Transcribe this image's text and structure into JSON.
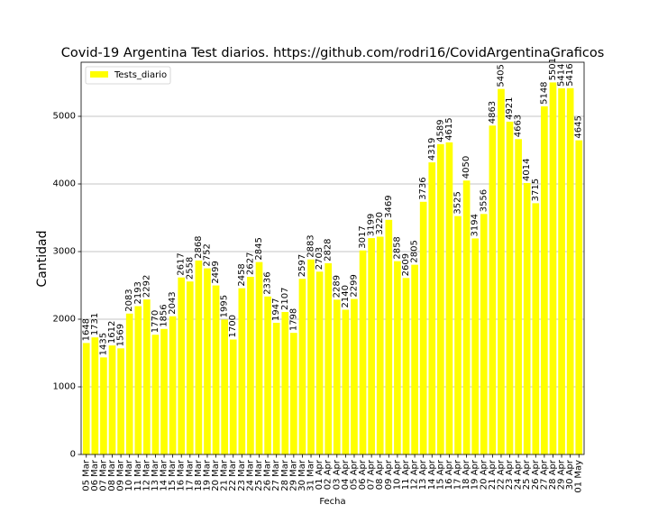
{
  "chart_data": {
    "type": "bar",
    "title": "Covid-19 Argentina Test diarios. https://github.com/rodri16/CovidArgentinaGraficos",
    "xlabel": "Fecha",
    "ylabel": "Cantidad",
    "ylim": [
      0,
      5800
    ],
    "yticks": [
      0,
      1000,
      2000,
      3000,
      4000,
      5000
    ],
    "grid": "horizontal",
    "legend_position": "top-left",
    "bar_color": "#ffff00",
    "categories": [
      "05 Mar",
      "06 Mar",
      "07 Mar",
      "08 Mar",
      "09 Mar",
      "10 Mar",
      "11 Mar",
      "12 Mar",
      "13 Mar",
      "14 Mar",
      "15 Mar",
      "16 Mar",
      "17 Mar",
      "18 Mar",
      "19 Mar",
      "20 Mar",
      "21 Mar",
      "22 Mar",
      "23 Mar",
      "24 Mar",
      "25 Mar",
      "26 Mar",
      "27 Mar",
      "28 Mar",
      "29 Mar",
      "30 Mar",
      "31 Mar",
      "01 Apr",
      "02 Apr",
      "03 Apr",
      "04 Apr",
      "05 Apr",
      "06 Apr",
      "07 Apr",
      "08 Apr",
      "09 Apr",
      "10 Apr",
      "11 Apr",
      "12 Apr",
      "13 Apr",
      "14 Apr",
      "15 Apr",
      "16 Apr",
      "17 Apr",
      "18 Apr",
      "19 Apr",
      "20 Apr",
      "21 Apr",
      "22 Apr",
      "23 Apr",
      "24 Apr",
      "25 Apr",
      "26 Apr",
      "27 Apr",
      "28 Apr",
      "29 Apr",
      "30 Apr",
      "01 May"
    ],
    "series": [
      {
        "name": "Tests_diario",
        "values": [
          1648,
          1731,
          1435,
          1612,
          1569,
          2083,
          2193,
          2292,
          1770,
          1856,
          2043,
          2617,
          2558,
          2868,
          2752,
          2499,
          1995,
          1700,
          2458,
          2627,
          2845,
          2336,
          1947,
          2107,
          1798,
          2597,
          2883,
          2703,
          2828,
          2289,
          2140,
          2299,
          3017,
          3199,
          3220,
          3469,
          2858,
          2609,
          2805,
          3736,
          4319,
          4589,
          4615,
          3525,
          4050,
          3194,
          3556,
          4863,
          5405,
          4921,
          4663,
          4014,
          3715,
          5148,
          5501,
          5414,
          5416,
          4645
        ]
      }
    ]
  }
}
